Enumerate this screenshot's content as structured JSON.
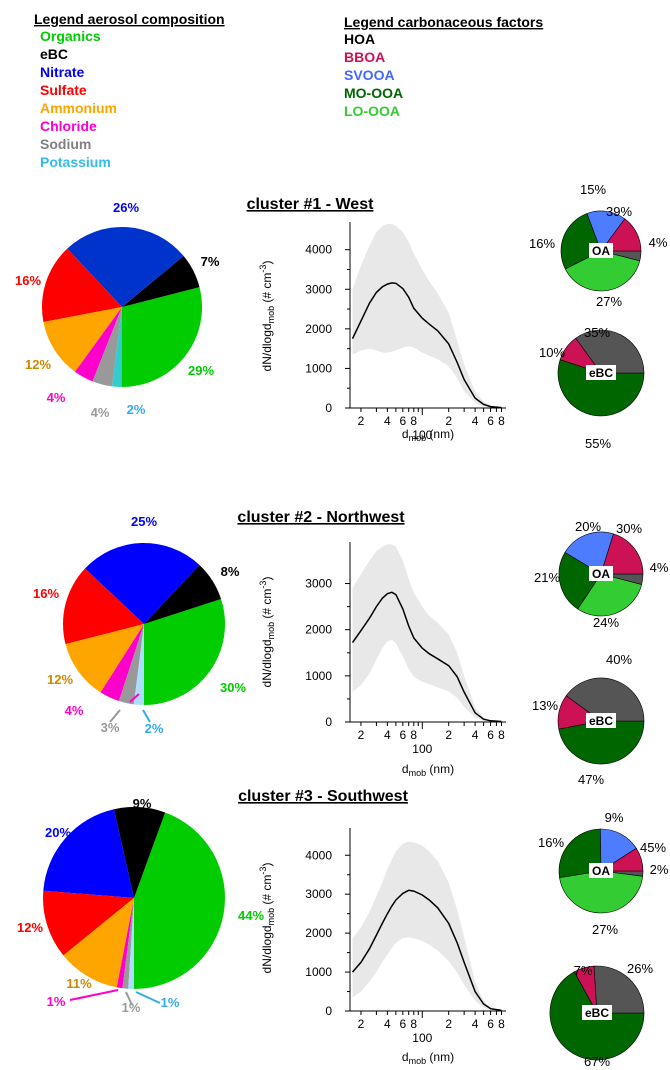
{
  "legends": {
    "composition": {
      "title": "Legend aerosol composition",
      "items": [
        {
          "label": "Organics",
          "color": "#00cc00"
        },
        {
          "label": "eBC",
          "color": "#000000"
        },
        {
          "label": "Nitrate",
          "color": "#0000ff"
        },
        {
          "label": "Sulfate",
          "color": "#ff0000"
        },
        {
          "label": "Ammonium",
          "color": "#ffa500"
        },
        {
          "label": "Chloride",
          "color": "#ff00cc"
        },
        {
          "label": "Sodium",
          "color": "#808080"
        },
        {
          "label": "Potassium",
          "color": "#33bbee"
        }
      ]
    },
    "factors": {
      "title": "Legend carbonaceous factors",
      "items": [
        {
          "label": "HOA",
          "color": "#000000"
        },
        {
          "label": "BBOA",
          "color": "#cc1155"
        },
        {
          "label": "SVOOA",
          "color": "#4466ff"
        },
        {
          "label": "MO-OOA",
          "color": "#006600"
        },
        {
          "label": "LO-OOA",
          "color": "#33cc33"
        }
      ]
    }
  },
  "colors": {
    "organics": "#00cc00",
    "ebc": "#000000",
    "nitrate_c1": "#0033cc",
    "nitrate": "#0000ff",
    "sulfate": "#ff0000",
    "ammonium": "#ffa500",
    "chloride": "#ff00cc",
    "sodium": "#999999",
    "potassium": "#33cccc",
    "potassium_light": "#aaddff",
    "hoa": "#555555",
    "bboa": "#cc1155",
    "svooa": "#4d7cff",
    "moooa": "#006600",
    "loooa": "#33cc33",
    "ebc_other": "#555555",
    "band": "#e8e8e8",
    "label_ammonium": "#cc8800",
    "label_sodium": "#999999",
    "label_potassium": "#33aaee"
  },
  "axes": {
    "ylabel": "dN/dlogd",
    "ylabel_sub": "mob",
    "ylabel_unit": " (# cm",
    "ylabel_sup": "-3",
    "ylabel_close": ")",
    "xlabel": "d",
    "xlabel_sub": "mob",
    "xlabel_unit": " (nm)",
    "xtick_minor": [
      "2",
      "4",
      "6",
      "8",
      "2",
      "4",
      "6",
      "8"
    ],
    "xtick_major": "100"
  },
  "chart_data": [
    {
      "type": "pie",
      "title": "cluster #1 - West",
      "slices": [
        {
          "name": "Organics",
          "value": 29,
          "label": "29%"
        },
        {
          "name": "eBC",
          "value": 7,
          "label": "7%"
        },
        {
          "name": "Nitrate",
          "value": 26,
          "label": "26%"
        },
        {
          "name": "Sulfate",
          "value": 16,
          "label": "16%"
        },
        {
          "name": "Ammonium",
          "value": 12,
          "label": "12%"
        },
        {
          "name": "Chloride",
          "value": 4,
          "label": "4%"
        },
        {
          "name": "Sodium",
          "value": 4,
          "label": "4%"
        },
        {
          "name": "Potassium",
          "value": 2,
          "label": "2%"
        }
      ]
    },
    {
      "type": "area",
      "title": "cluster #1 - West",
      "x_scale": "log",
      "xlim": [
        15,
        900
      ],
      "ylim": [
        0,
        4700
      ],
      "yticks": [
        0,
        1000,
        2000,
        3000,
        4000
      ],
      "x": [
        16,
        20,
        25,
        30,
        35,
        40,
        45,
        50,
        60,
        70,
        80,
        100,
        120,
        150,
        200,
        250,
        300,
        400,
        500,
        600,
        800
      ],
      "y": [
        1750,
        2200,
        2650,
        2920,
        3060,
        3130,
        3160,
        3150,
        3020,
        2800,
        2520,
        2270,
        2120,
        1950,
        1620,
        1150,
        720,
        250,
        90,
        35,
        10
      ],
      "band_upper": [
        3000,
        3600,
        4100,
        4450,
        4600,
        4650,
        4650,
        4600,
        4450,
        4200,
        3900,
        3500,
        3200,
        2900,
        2400,
        1700,
        1100,
        420,
        160,
        60,
        20
      ],
      "band_lower": [
        1350,
        1450,
        1500,
        1450,
        1400,
        1400,
        1420,
        1460,
        1520,
        1560,
        1530,
        1400,
        1320,
        1230,
        1050,
        750,
        430,
        130,
        45,
        15,
        5
      ]
    },
    {
      "type": "pie",
      "title": "OA",
      "slices": [
        {
          "name": "HOA",
          "value": 4,
          "label": "4%"
        },
        {
          "name": "LO-OOA",
          "value": 39,
          "label": "39%"
        },
        {
          "name": "MO-OOA",
          "value": 27,
          "label": "27%"
        },
        {
          "name": "SVOOA",
          "value": 16,
          "label": "16%"
        },
        {
          "name": "BBOA",
          "value": 15,
          "label": "15%"
        }
      ]
    },
    {
      "type": "pie",
      "title": "eBC",
      "slices": [
        {
          "name": "MO-OOA",
          "value": 55,
          "label": "55%"
        },
        {
          "name": "BBOA",
          "value": 10,
          "label": "10%"
        },
        {
          "name": "HOA",
          "value": 35,
          "label": "35%"
        }
      ]
    },
    {
      "type": "pie",
      "title": "cluster #2 - Northwest",
      "slices": [
        {
          "name": "Organics",
          "value": 30,
          "label": "30%"
        },
        {
          "name": "eBC",
          "value": 8,
          "label": "8%"
        },
        {
          "name": "Nitrate",
          "value": 25,
          "label": "25%"
        },
        {
          "name": "Sulfate",
          "value": 16,
          "label": "16%"
        },
        {
          "name": "Ammonium",
          "value": 12,
          "label": "12%"
        },
        {
          "name": "Chloride",
          "value": 4,
          "label": "4%"
        },
        {
          "name": "Sodium",
          "value": 3,
          "label": "3%"
        },
        {
          "name": "Potassium",
          "value": 2,
          "label": "2%"
        }
      ]
    },
    {
      "type": "area",
      "title": "cluster #2 - Northwest",
      "x_scale": "log",
      "xlim": [
        15,
        900
      ],
      "ylim": [
        0,
        3900
      ],
      "yticks": [
        0,
        1000,
        2000,
        3000
      ],
      "x": [
        16,
        20,
        25,
        30,
        35,
        40,
        45,
        50,
        60,
        70,
        80,
        100,
        120,
        150,
        200,
        250,
        300,
        400,
        500,
        600,
        800
      ],
      "y": [
        1720,
        1980,
        2250,
        2500,
        2680,
        2780,
        2810,
        2760,
        2450,
        2080,
        1820,
        1600,
        1480,
        1370,
        1220,
        980,
        650,
        200,
        60,
        25,
        10
      ],
      "band_upper": [
        2900,
        3200,
        3500,
        3700,
        3800,
        3850,
        3850,
        3800,
        3500,
        3100,
        2800,
        2500,
        2300,
        2150,
        1900,
        1500,
        1000,
        320,
        100,
        40,
        15
      ],
      "band_lower": [
        650,
        800,
        1050,
        1350,
        1600,
        1750,
        1780,
        1700,
        1420,
        1150,
        980,
        870,
        820,
        750,
        660,
        520,
        330,
        90,
        25,
        10,
        5
      ]
    },
    {
      "type": "pie",
      "title": "OA",
      "slices": [
        {
          "name": "HOA",
          "value": 4,
          "label": "4%"
        },
        {
          "name": "LO-OOA",
          "value": 30,
          "label": "30%"
        },
        {
          "name": "MO-OOA",
          "value": 24,
          "label": "24%"
        },
        {
          "name": "SVOOA",
          "value": 21,
          "label": "21%"
        },
        {
          "name": "BBOA",
          "value": 20,
          "label": "20%"
        }
      ]
    },
    {
      "type": "pie",
      "title": "eBC",
      "slices": [
        {
          "name": "MO-OOA",
          "value": 47,
          "label": "47%"
        },
        {
          "name": "BBOA",
          "value": 13,
          "label": "13%"
        },
        {
          "name": "HOA",
          "value": 40,
          "label": "40%"
        }
      ]
    },
    {
      "type": "pie",
      "title": "cluster #3 - Southwest",
      "slices": [
        {
          "name": "Organics",
          "value": 44,
          "label": "44%"
        },
        {
          "name": "eBC",
          "value": 9,
          "label": "9%"
        },
        {
          "name": "Nitrate",
          "value": 20,
          "label": "20%"
        },
        {
          "name": "Sulfate",
          "value": 12,
          "label": "12%"
        },
        {
          "name": "Ammonium",
          "value": 11,
          "label": "11%"
        },
        {
          "name": "Chloride",
          "value": 1,
          "label": "1%"
        },
        {
          "name": "Sodium",
          "value": 1,
          "label": "1%"
        },
        {
          "name": "Potassium",
          "value": 1,
          "label": "1%"
        }
      ]
    },
    {
      "type": "area",
      "title": "cluster #3 - Southwest",
      "x_scale": "log",
      "xlim": [
        15,
        900
      ],
      "ylim": [
        0,
        4700
      ],
      "yticks": [
        0,
        1000,
        2000,
        3000,
        4000
      ],
      "x": [
        16,
        20,
        25,
        30,
        35,
        40,
        45,
        50,
        60,
        70,
        80,
        100,
        120,
        150,
        200,
        250,
        300,
        400,
        500,
        600,
        800
      ],
      "y": [
        1000,
        1250,
        1600,
        1950,
        2250,
        2500,
        2700,
        2850,
        3020,
        3100,
        3080,
        2980,
        2850,
        2650,
        2250,
        1750,
        1250,
        500,
        180,
        60,
        15
      ],
      "band_upper": [
        1850,
        2150,
        2550,
        2950,
        3300,
        3650,
        3900,
        4100,
        4300,
        4350,
        4330,
        4250,
        4100,
        3850,
        3300,
        2600,
        1900,
        750,
        260,
        90,
        20
      ],
      "band_lower": [
        350,
        500,
        750,
        1000,
        1250,
        1450,
        1620,
        1750,
        1870,
        1890,
        1870,
        1800,
        1700,
        1550,
        1280,
        980,
        680,
        260,
        90,
        30,
        8
      ]
    },
    {
      "type": "pie",
      "title": "OA",
      "slices": [
        {
          "name": "HOA",
          "value": 2,
          "label": "2%"
        },
        {
          "name": "LO-OOA",
          "value": 45,
          "label": "45%"
        },
        {
          "name": "MO-OOA",
          "value": 27,
          "label": "27%"
        },
        {
          "name": "SVOOA",
          "value": 16,
          "label": "16%"
        },
        {
          "name": "BBOA",
          "value": 9,
          "label": "9%"
        }
      ]
    },
    {
      "type": "pie",
      "title": "eBC",
      "slices": [
        {
          "name": "MO-OOA",
          "value": 67,
          "label": "67%"
        },
        {
          "name": "BBOA",
          "value": 7,
          "label": "7%"
        },
        {
          "name": "HOA",
          "value": 26,
          "label": "26%"
        }
      ]
    }
  ]
}
